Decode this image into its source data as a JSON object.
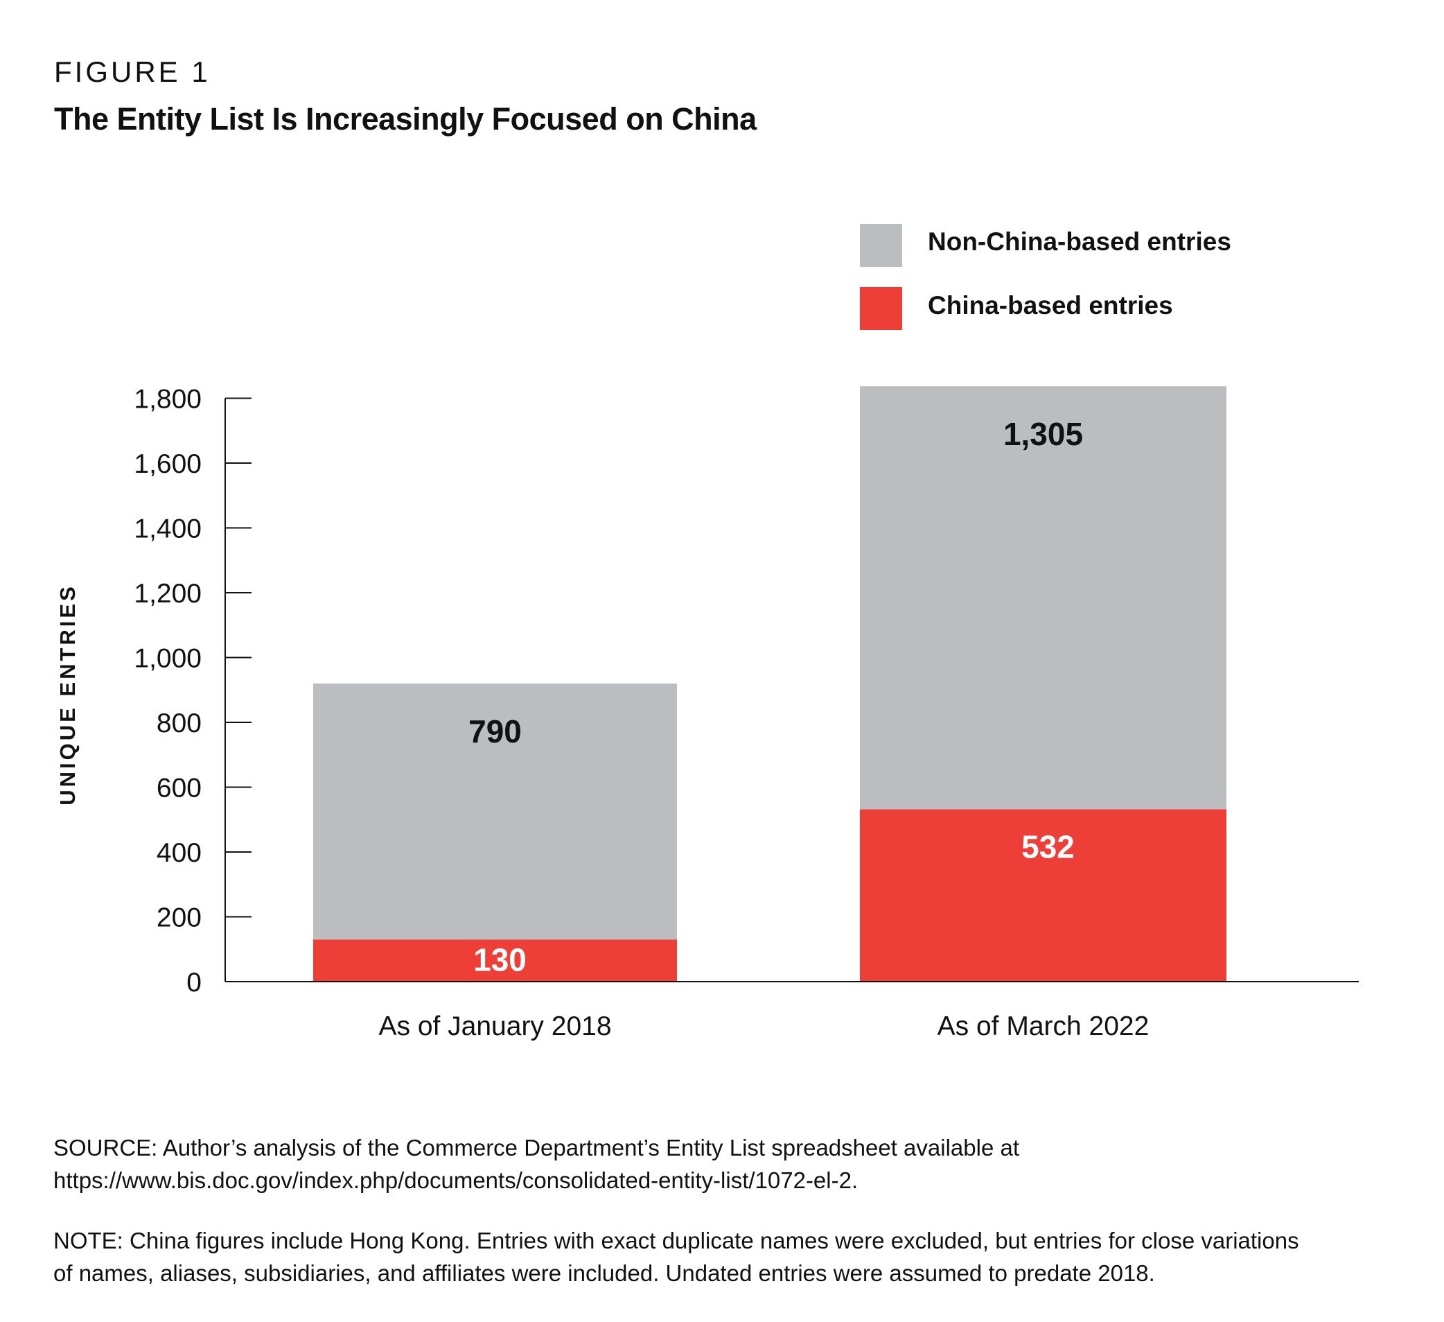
{
  "figure_label": "FIGURE 1",
  "source": "SOURCE: Author’s analysis of the Commerce Department’s Entity List spreadsheet available at https://www.bis.doc.gov/index.php/documents/consolidated-entity-list/1072-el-2.",
  "source_lines": [
    "SOURCE: Author’s analysis of the Commerce Department’s Entity List spreadsheet available at",
    "https://www.bis.doc.gov/index.php/documents/consolidated-entity-list/1072-el-2."
  ],
  "note_lines": [
    "NOTE: China figures include Hong Kong. Entries with exact duplicate names were excluded, but entries for close variations",
    "of names, aliases, subsidiaries, and affiliates were included. Undated entries were assumed to predate 2018."
  ],
  "chart_data": {
    "type": "bar",
    "stacked": true,
    "title": "The Entity List Is Increasingly Focused on China",
    "xlabel": "",
    "ylabel": "UNIQUE ENTRIES",
    "categories": [
      "As of January 2018",
      "As of March 2022"
    ],
    "series": [
      {
        "name": "China-based entries",
        "values": [
          130,
          532
        ],
        "color": "#EE3E38",
        "label_color": "#ffffff"
      },
      {
        "name": "Non-China-based entries",
        "values": [
          790,
          1305
        ],
        "color": "#BCBDBF",
        "label_color": "#111111"
      }
    ],
    "data_labels": [
      [
        "130",
        "532"
      ],
      [
        "790",
        "1,305"
      ]
    ],
    "legend_order": [
      "Non-China-based entries",
      "China-based entries"
    ],
    "legend_position": "top-right",
    "ylim": [
      0,
      1800
    ],
    "yticks": [
      0,
      200,
      400,
      600,
      800,
      1000,
      1200,
      1400,
      1600,
      1800
    ],
    "ytick_labels": [
      "0",
      "200",
      "400",
      "600",
      "800",
      "1,000",
      "1,200",
      "1,400",
      "1,600",
      "1,800"
    ],
    "grid": false
  }
}
